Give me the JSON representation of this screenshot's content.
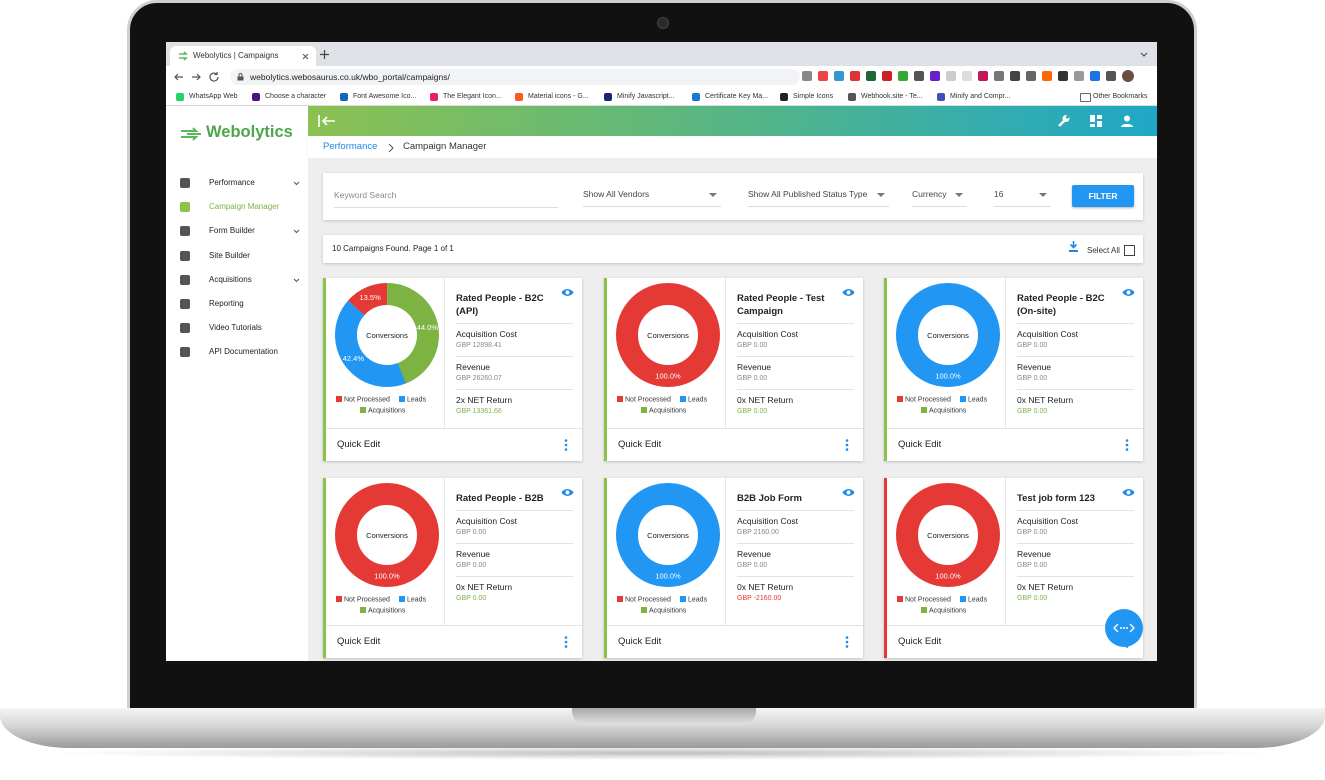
{
  "browser": {
    "tab_title": "Webolytics | Campaigns",
    "url": "webolytics.webosaurus.co.uk/wbo_portal/campaigns/",
    "bookmarks": [
      "WhatsApp Web",
      "Choose a character",
      "Font Awesome Ico...",
      "The Elegant Icon...",
      "Material icons - G...",
      "Minify Javascript...",
      "Certificate Key Ma...",
      "Simple Icons",
      "Webhook.site - Te...",
      "Minify and Compr..."
    ],
    "other_bookmarks": "Other Bookmarks"
  },
  "sidebar": {
    "logo": "Webolytics",
    "items": [
      {
        "label": "Performance",
        "expandable": true
      },
      {
        "label": "Campaign Manager",
        "active": true
      },
      {
        "label": "Form Builder",
        "expandable": true
      },
      {
        "label": "Site Builder"
      },
      {
        "label": "Acquisitions",
        "expandable": true
      },
      {
        "label": "Reporting"
      },
      {
        "label": "Video Tutorials"
      },
      {
        "label": "API Documentation"
      }
    ]
  },
  "breadcrumb": {
    "parent": "Performance",
    "current": "Campaign Manager"
  },
  "filters": {
    "keyword_placeholder": "Keyword Search",
    "vendors": "Show All Vendors",
    "status": "Show All Published Status Type",
    "currency": "Currency",
    "per_page": "16",
    "button": "FILTER"
  },
  "results": {
    "summary": "10 Campaigns Found. Page 1 of 1",
    "select_all": "Select All"
  },
  "legend": [
    {
      "name": "Not Processed",
      "color": "#e53935"
    },
    {
      "name": "Leads",
      "color": "#2196f3"
    },
    {
      "name": "Acquisitions",
      "color": "#7cb342"
    }
  ],
  "cards": [
    {
      "title": "Rated People - B2C (API)",
      "center": "Conversions",
      "status_color": "#8bc34a",
      "chart": {
        "values": [
          13.5,
          42.4,
          44.0
        ],
        "value_labels": [
          "13.5%",
          "42.4%",
          "44.0%"
        ],
        "colors": [
          "#e53935",
          "#2196f3",
          "#7cb342"
        ]
      },
      "stats": [
        {
          "label": "Acquisition Cost",
          "value": "GBP 12898.41"
        },
        {
          "label": "Revenue",
          "value": "GBP 26260.07"
        },
        {
          "label": "2x NET Return",
          "value": "GBP 13361.66",
          "color": "#7cb342"
        }
      ],
      "action": "Quick Edit"
    },
    {
      "title": "Rated People - Test Campaign",
      "center": "Conversions",
      "status_color": "#8bc34a",
      "chart": {
        "values": [
          100.0
        ],
        "value_labels": [
          "100.0%"
        ],
        "colors": [
          "#e53935"
        ]
      },
      "stats": [
        {
          "label": "Acquisition Cost",
          "value": "GBP 0.00"
        },
        {
          "label": "Revenue",
          "value": "GBP 0.00"
        },
        {
          "label": "0x NET Return",
          "value": "GBP 0.00",
          "color": "#7cb342"
        }
      ],
      "action": "Quick Edit"
    },
    {
      "title": "Rated People - B2C (On-site)",
      "center": "Conversions",
      "status_color": "#8bc34a",
      "chart": {
        "values": [
          100.0
        ],
        "value_labels": [
          "100.0%"
        ],
        "colors": [
          "#2196f3"
        ]
      },
      "stats": [
        {
          "label": "Acquisition Cost",
          "value": "GBP 0.00"
        },
        {
          "label": "Revenue",
          "value": "GBP 0.00"
        },
        {
          "label": "0x NET Return",
          "value": "GBP 0.00",
          "color": "#7cb342"
        }
      ],
      "action": "Quick Edit"
    },
    {
      "title": "Rated People - B2B",
      "center": "Conversions",
      "status_color": "#8bc34a",
      "chart": {
        "values": [
          100.0
        ],
        "value_labels": [
          "100.0%"
        ],
        "colors": [
          "#e53935"
        ]
      },
      "stats": [
        {
          "label": "Acquisition Cost",
          "value": "GBP 0.00"
        },
        {
          "label": "Revenue",
          "value": "GBP 0.00"
        },
        {
          "label": "0x NET Return",
          "value": "GBP 0.00",
          "color": "#7cb342"
        }
      ],
      "action": "Quick Edit"
    },
    {
      "title": "B2B Job Form",
      "center": "Conversions",
      "status_color": "#8bc34a",
      "chart": {
        "values": [
          100.0
        ],
        "value_labels": [
          "100.0%"
        ],
        "colors": [
          "#2196f3"
        ]
      },
      "stats": [
        {
          "label": "Acquisition Cost",
          "value": "GBP 2160.00"
        },
        {
          "label": "Revenue",
          "value": "GBP 0.00"
        },
        {
          "label": "0x NET Return",
          "value": "GBP -2160.00",
          "color": "#e53935"
        }
      ],
      "action": "Quick Edit"
    },
    {
      "title": "Test job form 123",
      "center": "Conversions",
      "status_color": "#e53935",
      "chart": {
        "values": [
          100.0
        ],
        "value_labels": [
          "100.0%"
        ],
        "colors": [
          "#e53935"
        ]
      },
      "stats": [
        {
          "label": "Acquisition Cost",
          "value": "GBP 0.00"
        },
        {
          "label": "Revenue",
          "value": "GBP 0.00"
        },
        {
          "label": "0x NET Return",
          "value": "GBP 0.00",
          "color": "#7cb342"
        }
      ],
      "action": "Quick Edit"
    }
  ]
}
